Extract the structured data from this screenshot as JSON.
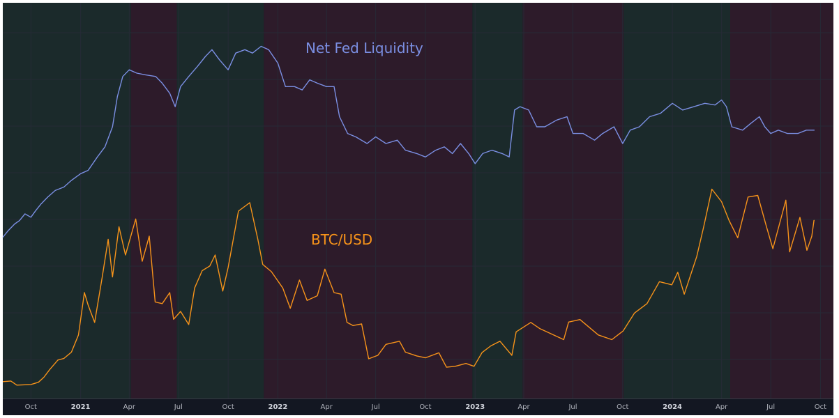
{
  "chart_data": {
    "type": "line",
    "title": "",
    "xlabel": "",
    "ylabel": "",
    "x_range": [
      "2020-08-10",
      "2024-10-25"
    ],
    "grid": true,
    "legend": "none",
    "tick_labels": [
      {
        "date": "2020-10-01",
        "text": "Oct",
        "year": false
      },
      {
        "date": "2021-01-01",
        "text": "2021",
        "year": true
      },
      {
        "date": "2021-04-01",
        "text": "Apr",
        "year": false
      },
      {
        "date": "2021-07-01",
        "text": "Jul",
        "year": false
      },
      {
        "date": "2021-10-01",
        "text": "Oct",
        "year": false
      },
      {
        "date": "2022-01-01",
        "text": "2022",
        "year": true
      },
      {
        "date": "2022-04-01",
        "text": "Apr",
        "year": false
      },
      {
        "date": "2022-07-01",
        "text": "Jul",
        "year": false
      },
      {
        "date": "2022-10-01",
        "text": "Oct",
        "year": false
      },
      {
        "date": "2023-01-01",
        "text": "2023",
        "year": true
      },
      {
        "date": "2023-04-01",
        "text": "Apr",
        "year": false
      },
      {
        "date": "2023-07-01",
        "text": "Jul",
        "year": false
      },
      {
        "date": "2023-10-01",
        "text": "Oct",
        "year": false
      },
      {
        "date": "2024-01-01",
        "text": "2024",
        "year": true
      },
      {
        "date": "2024-04-01",
        "text": "Apr",
        "year": false
      },
      {
        "date": "2024-07-01",
        "text": "Jul",
        "year": false
      },
      {
        "date": "2024-10-01",
        "text": "Oct",
        "year": false
      }
    ],
    "regimes": [
      {
        "start": "2020-08-10",
        "end": "2021-04-04",
        "state": "expanding"
      },
      {
        "start": "2021-04-04",
        "end": "2021-06-28",
        "state": "contracting"
      },
      {
        "start": "2021-06-28",
        "end": "2021-12-06",
        "state": "expanding"
      },
      {
        "start": "2021-12-06",
        "end": "2022-12-27",
        "state": "contracting"
      },
      {
        "start": "2022-12-27",
        "end": "2023-03-30",
        "state": "expanding"
      },
      {
        "start": "2023-03-30",
        "end": "2023-10-03",
        "state": "contracting"
      },
      {
        "start": "2023-10-03",
        "end": "2024-04-17",
        "state": "expanding"
      },
      {
        "start": "2024-04-17",
        "end": "2024-10-25",
        "state": "contracting"
      }
    ],
    "series": [
      {
        "name": "Net Fed Liquidity",
        "color": "#7b8fe3",
        "values": [
          [
            "2020-08-10",
            30
          ],
          [
            "2020-08-20",
            32
          ],
          [
            "2020-09-01",
            34
          ],
          [
            "2020-09-10",
            35
          ],
          [
            "2020-09-20",
            37
          ],
          [
            "2020-10-01",
            36
          ],
          [
            "2020-10-10",
            38
          ],
          [
            "2020-10-20",
            40
          ],
          [
            "2020-11-01",
            42
          ],
          [
            "2020-11-15",
            44
          ],
          [
            "2020-12-01",
            45
          ],
          [
            "2020-12-15",
            47
          ],
          [
            "2021-01-01",
            49
          ],
          [
            "2021-01-15",
            50
          ],
          [
            "2021-02-01",
            54
          ],
          [
            "2021-02-15",
            57
          ],
          [
            "2021-03-01",
            63
          ],
          [
            "2021-03-10",
            72
          ],
          [
            "2021-03-20",
            78
          ],
          [
            "2021-04-01",
            80
          ],
          [
            "2021-04-15",
            79
          ],
          [
            "2021-05-01",
            78.5
          ],
          [
            "2021-05-20",
            78
          ],
          [
            "2021-06-01",
            76
          ],
          [
            "2021-06-15",
            73
          ],
          [
            "2021-06-25",
            69
          ],
          [
            "2021-07-05",
            75
          ],
          [
            "2021-07-20",
            78
          ],
          [
            "2021-08-05",
            81
          ],
          [
            "2021-08-20",
            84
          ],
          [
            "2021-09-01",
            86
          ],
          [
            "2021-09-15",
            83
          ],
          [
            "2021-10-01",
            80
          ],
          [
            "2021-10-15",
            85
          ],
          [
            "2021-11-01",
            86
          ],
          [
            "2021-11-15",
            85
          ],
          [
            "2021-12-01",
            87
          ],
          [
            "2021-12-15",
            86
          ],
          [
            "2022-01-01",
            82
          ],
          [
            "2022-01-15",
            75
          ],
          [
            "2022-02-01",
            75
          ],
          [
            "2022-02-15",
            74
          ],
          [
            "2022-03-01",
            77
          ],
          [
            "2022-03-15",
            76
          ],
          [
            "2022-04-01",
            75
          ],
          [
            "2022-04-15",
            75
          ],
          [
            "2022-04-25",
            66
          ],
          [
            "2022-05-10",
            61
          ],
          [
            "2022-05-25",
            60
          ],
          [
            "2022-06-15",
            58
          ],
          [
            "2022-07-01",
            60
          ],
          [
            "2022-07-20",
            58
          ],
          [
            "2022-08-10",
            59
          ],
          [
            "2022-08-25",
            56
          ],
          [
            "2022-09-15",
            55
          ],
          [
            "2022-10-01",
            54
          ],
          [
            "2022-10-20",
            56
          ],
          [
            "2022-11-05",
            57
          ],
          [
            "2022-11-20",
            55
          ],
          [
            "2022-12-05",
            58
          ],
          [
            "2022-12-20",
            55
          ],
          [
            "2023-01-01",
            52
          ],
          [
            "2023-01-15",
            55
          ],
          [
            "2023-02-01",
            56
          ],
          [
            "2023-02-20",
            55
          ],
          [
            "2023-03-05",
            54
          ],
          [
            "2023-03-15",
            68
          ],
          [
            "2023-03-25",
            69
          ],
          [
            "2023-04-10",
            68
          ],
          [
            "2023-04-25",
            63
          ],
          [
            "2023-05-10",
            63
          ],
          [
            "2023-06-01",
            65
          ],
          [
            "2023-06-20",
            66
          ],
          [
            "2023-07-01",
            61
          ],
          [
            "2023-07-20",
            61
          ],
          [
            "2023-08-10",
            59
          ],
          [
            "2023-08-25",
            61
          ],
          [
            "2023-09-15",
            63
          ],
          [
            "2023-10-01",
            58
          ],
          [
            "2023-10-15",
            62
          ],
          [
            "2023-11-01",
            63
          ],
          [
            "2023-11-20",
            66
          ],
          [
            "2023-12-10",
            67
          ],
          [
            "2024-01-01",
            70
          ],
          [
            "2024-01-20",
            68
          ],
          [
            "2024-02-10",
            69
          ],
          [
            "2024-03-01",
            70
          ],
          [
            "2024-03-20",
            69.5
          ],
          [
            "2024-04-01",
            71
          ],
          [
            "2024-04-10",
            69
          ],
          [
            "2024-04-20",
            63
          ],
          [
            "2024-05-10",
            62
          ],
          [
            "2024-05-25",
            64
          ],
          [
            "2024-06-10",
            66
          ],
          [
            "2024-06-20",
            63
          ],
          [
            "2024-07-01",
            61
          ],
          [
            "2024-07-15",
            62
          ],
          [
            "2024-08-01",
            61
          ],
          [
            "2024-08-20",
            61
          ],
          [
            "2024-09-05",
            62
          ],
          [
            "2024-09-20",
            62
          ]
        ]
      },
      {
        "name": "BTC/USD",
        "color": "#f7931a",
        "values": [
          [
            "2020-08-10",
            11.6
          ],
          [
            "2020-08-25",
            11.8
          ],
          [
            "2020-09-05",
            10.5
          ],
          [
            "2020-09-20",
            10.6
          ],
          [
            "2020-10-01",
            10.7
          ],
          [
            "2020-10-15",
            11.4
          ],
          [
            "2020-10-25",
            13.0
          ],
          [
            "2020-11-05",
            15.5
          ],
          [
            "2020-11-20",
            18.5
          ],
          [
            "2020-12-01",
            19.0
          ],
          [
            "2020-12-15",
            21.0
          ],
          [
            "2020-12-28",
            26.5
          ],
          [
            "2021-01-08",
            40.0
          ],
          [
            "2021-01-15",
            36.0
          ],
          [
            "2021-01-27",
            30.5
          ],
          [
            "2021-02-10",
            45.0
          ],
          [
            "2021-02-21",
            57.0
          ],
          [
            "2021-03-01",
            45.0
          ],
          [
            "2021-03-13",
            61.0
          ],
          [
            "2021-03-25",
            52.0
          ],
          [
            "2021-04-13",
            63.5
          ],
          [
            "2021-04-25",
            50.0
          ],
          [
            "2021-05-08",
            58.0
          ],
          [
            "2021-05-19",
            37.0
          ],
          [
            "2021-06-01",
            36.5
          ],
          [
            "2021-06-15",
            40.0
          ],
          [
            "2021-06-22",
            31.5
          ],
          [
            "2021-07-05",
            34.0
          ],
          [
            "2021-07-20",
            29.8
          ],
          [
            "2021-07-31",
            41.5
          ],
          [
            "2021-08-14",
            47.0
          ],
          [
            "2021-08-28",
            48.5
          ],
          [
            "2021-09-07",
            52.0
          ],
          [
            "2021-09-21",
            40.5
          ],
          [
            "2021-10-01",
            48.0
          ],
          [
            "2021-10-20",
            66.0
          ],
          [
            "2021-11-10",
            68.7
          ],
          [
            "2021-11-25",
            57.0
          ],
          [
            "2021-12-04",
            49.0
          ],
          [
            "2021-12-20",
            46.7
          ],
          [
            "2022-01-10",
            41.5
          ],
          [
            "2022-01-24",
            35.0
          ],
          [
            "2022-02-10",
            44.0
          ],
          [
            "2022-02-24",
            37.5
          ],
          [
            "2022-03-15",
            39.0
          ],
          [
            "2022-03-29",
            47.5
          ],
          [
            "2022-04-15",
            40.0
          ],
          [
            "2022-04-28",
            39.5
          ],
          [
            "2022-05-09",
            30.5
          ],
          [
            "2022-05-20",
            29.5
          ],
          [
            "2022-06-05",
            30.0
          ],
          [
            "2022-06-18",
            18.9
          ],
          [
            "2022-07-05",
            20.0
          ],
          [
            "2022-07-20",
            23.5
          ],
          [
            "2022-08-14",
            24.5
          ],
          [
            "2022-08-25",
            21.0
          ],
          [
            "2022-09-15",
            19.8
          ],
          [
            "2022-10-01",
            19.2
          ],
          [
            "2022-10-26",
            20.8
          ],
          [
            "2022-11-09",
            16.2
          ],
          [
            "2022-11-25",
            16.5
          ],
          [
            "2022-12-15",
            17.4
          ],
          [
            "2022-12-30",
            16.5
          ],
          [
            "2023-01-14",
            20.9
          ],
          [
            "2023-01-30",
            23.0
          ],
          [
            "2023-02-16",
            24.5
          ],
          [
            "2023-03-10",
            20.0
          ],
          [
            "2023-03-18",
            27.5
          ],
          [
            "2023-04-14",
            30.5
          ],
          [
            "2023-05-01",
            28.5
          ],
          [
            "2023-06-14",
            25.0
          ],
          [
            "2023-06-23",
            30.6
          ],
          [
            "2023-07-14",
            31.4
          ],
          [
            "2023-08-17",
            26.5
          ],
          [
            "2023-09-11",
            25.0
          ],
          [
            "2023-10-02",
            27.8
          ],
          [
            "2023-10-23",
            33.5
          ],
          [
            "2023-11-15",
            36.5
          ],
          [
            "2023-12-08",
            43.5
          ],
          [
            "2023-12-31",
            42.5
          ],
          [
            "2024-01-11",
            46.5
          ],
          [
            "2024-01-23",
            39.5
          ],
          [
            "2024-02-15",
            51.5
          ],
          [
            "2024-02-28",
            61.0
          ],
          [
            "2024-03-14",
            73.0
          ],
          [
            "2024-04-01",
            69.0
          ],
          [
            "2024-04-15",
            63.0
          ],
          [
            "2024-05-01",
            57.5
          ],
          [
            "2024-05-20",
            70.5
          ],
          [
            "2024-06-07",
            71.0
          ],
          [
            "2024-06-24",
            60.5
          ],
          [
            "2024-07-05",
            54.0
          ],
          [
            "2024-07-29",
            69.5
          ],
          [
            "2024-08-05",
            53.0
          ],
          [
            "2024-08-24",
            64.0
          ],
          [
            "2024-09-06",
            53.5
          ],
          [
            "2024-09-15",
            58.0
          ],
          [
            "2024-09-19",
            63.0
          ],
          [
            "2024-09-20",
            63.0
          ]
        ]
      }
    ]
  },
  "labels": {
    "liquidity": "Net Fed Liquidity",
    "btc": "BTC/USD"
  },
  "colors": {
    "background": "#131722",
    "expanding_band": "#1b2a2b",
    "contracting_band": "#2d1b2a",
    "grid": "#262a36",
    "liquidity_line": "#7b8fe3",
    "btc_line": "#f7931a",
    "tick_text": "#b2b5be"
  }
}
